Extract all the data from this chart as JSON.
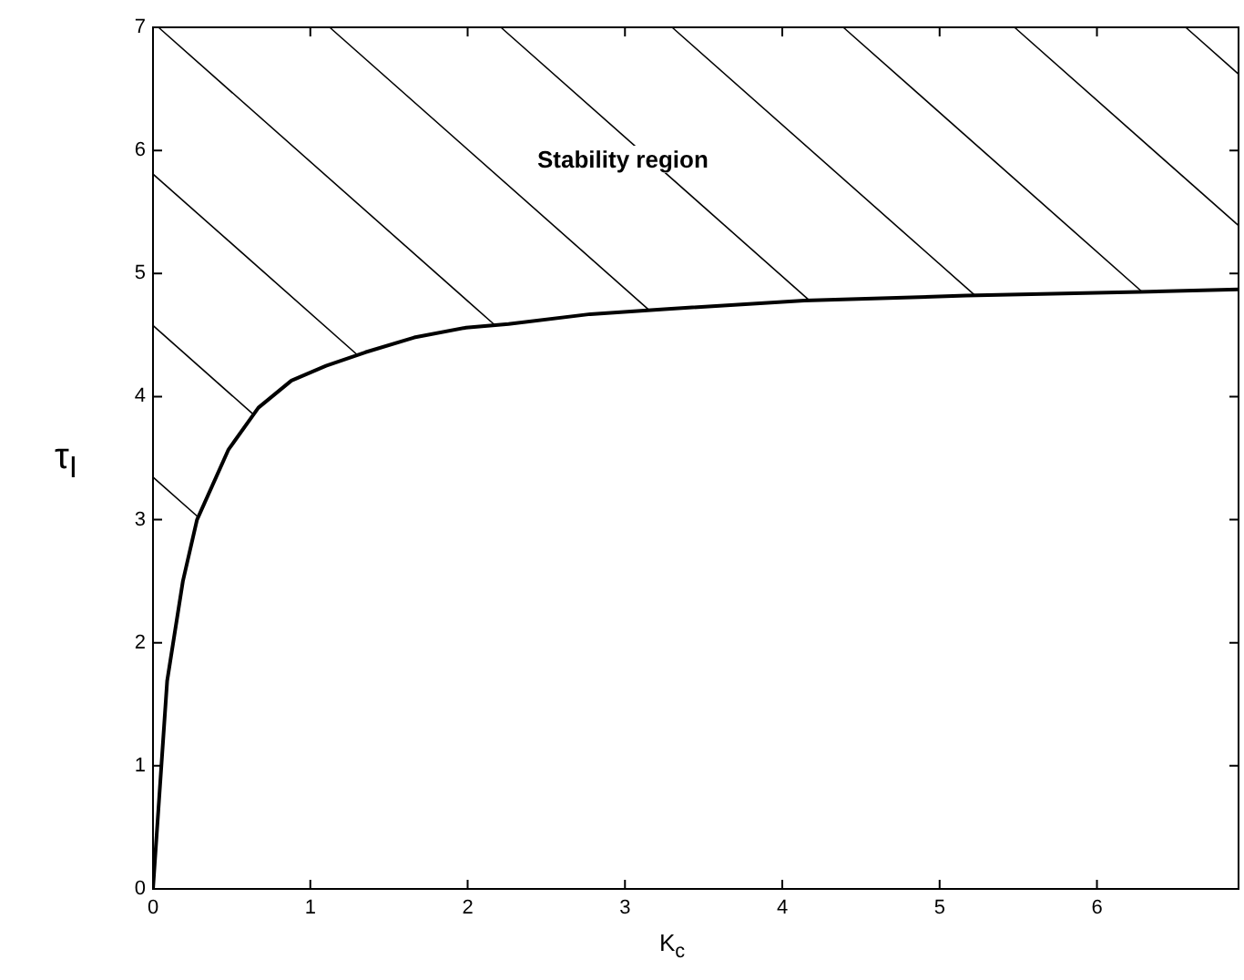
{
  "chart_data": {
    "type": "line",
    "xlabel": "K$_{c}$",
    "ylabel": "τ$_{I}$",
    "x": [
      0,
      0.09,
      0.19,
      0.28,
      0.48,
      0.67,
      0.88,
      1.1,
      1.35,
      1.66,
      1.99,
      2.26,
      2.78,
      3.25,
      4.14,
      5.17,
      6.27,
      6.9
    ],
    "series": [
      {
        "color": "#000000",
        "values": [
          0,
          1.69,
          2.5,
          3.0,
          3.57,
          3.91,
          4.13,
          4.25,
          4.36,
          4.48,
          4.56,
          4.59,
          4.67,
          4.71,
          4.78,
          4.82,
          4.85,
          4.87
        ]
      }
    ],
    "xlim": [
      0,
      6.9
    ],
    "xticks": [
      0,
      1,
      2,
      3,
      4,
      5,
      6
    ],
    "ylim": [
      0,
      7
    ],
    "yticks": [
      0,
      1,
      2,
      3,
      4,
      5,
      6,
      7
    ],
    "annotations": [
      "Stability region"
    ],
    "marker": "none",
    "line_style": "solid",
    "legend": false,
    "grid": false
  }
}
